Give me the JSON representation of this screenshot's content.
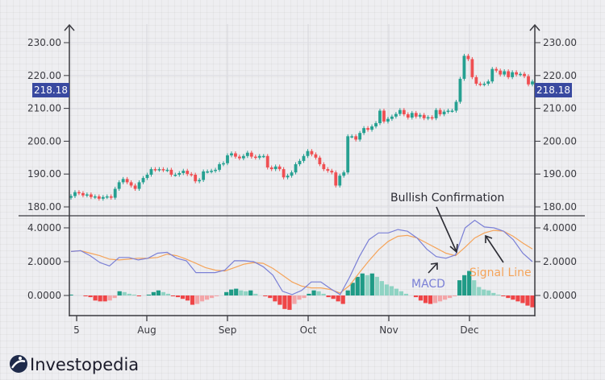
{
  "chart_data": [
    {
      "type": "candlestick",
      "panel": "price",
      "ylim": [
        178,
        236
      ],
      "yticks": [
        "230.00",
        "220.00",
        "210.00",
        "200.00",
        "190.00",
        "180.00"
      ],
      "ytick_values": [
        230,
        220,
        210,
        200,
        190,
        180
      ],
      "last_price_label": "218.18",
      "closes": [
        183.3,
        184.5,
        184.2,
        183.5,
        183.8,
        183,
        183.2,
        182.5,
        183,
        183.2,
        182.8,
        185.5,
        187.5,
        188.5,
        187.5,
        186.5,
        185.5,
        187.5,
        188.8,
        189.8,
        191.5,
        191.3,
        191.5,
        191.2,
        191.3,
        189.8,
        189.8,
        190.3,
        191,
        190,
        189.8,
        187.8,
        188.2,
        190.8,
        190.8,
        191,
        191.3,
        193,
        193.3,
        195.7,
        196.3,
        195.3,
        194.8,
        195.5,
        196.5,
        195.3,
        195,
        195.5,
        195.5,
        192,
        191.5,
        192.3,
        191.5,
        189,
        189.5,
        190.5,
        193,
        194,
        195.5,
        197,
        196,
        195,
        193,
        191.5,
        191,
        190.5,
        186.5,
        189.5,
        190.5,
        201.5,
        201.5,
        200.5,
        202.5,
        204,
        203.5,
        204.5,
        205.5,
        209.3,
        206,
        206.8,
        207.5,
        208.3,
        209.5,
        208.2,
        207.2,
        208.6,
        207.5,
        208,
        207,
        207.3,
        207,
        209.5,
        208.2,
        209,
        209.3,
        209.3,
        212,
        219,
        226,
        225,
        219.5,
        217.5,
        217.3,
        217.5,
        218.2,
        222,
        221.5,
        220.3,
        221.3,
        219.5,
        221,
        220.3,
        220.5,
        219.8,
        217.3,
        218.18
      ],
      "colors": {
        "up": "#26a091",
        "down": "#ef4f52",
        "price_label_bg": "#3949a0"
      }
    },
    {
      "type": "line+bar",
      "panel": "macd",
      "ylim": [
        -1.0,
        4.6
      ],
      "yticks": [
        "4.0000",
        "2.0000",
        "0.0000"
      ],
      "ytick_values": [
        4,
        2,
        0
      ],
      "xticks": [
        "5",
        "Aug",
        "Sep",
        "Oct",
        "Nov",
        "Dec"
      ],
      "series": [
        {
          "name": "MACD",
          "color": "#7b80d6",
          "values": [
            2.6,
            2.65,
            2.35,
            1.95,
            1.75,
            2.25,
            2.25,
            2.1,
            2.2,
            2.5,
            2.55,
            2.2,
            2.05,
            1.35,
            1.35,
            1.35,
            1.5,
            2.05,
            2.05,
            2.0,
            1.7,
            1.2,
            0.25,
            0.05,
            0.3,
            0.8,
            0.8,
            0.4,
            0.05,
            1.1,
            2.3,
            3.3,
            3.7,
            3.7,
            3.9,
            3.8,
            3.4,
            2.75,
            2.3,
            2.2,
            2.4,
            4.0,
            4.45,
            4.05,
            4.0,
            3.8,
            3.3,
            2.5,
            2.0
          ]
        },
        {
          "name": "Signal Line",
          "color": "#f5a45a",
          "values": [
            2.6,
            2.65,
            2.5,
            2.35,
            2.15,
            2.1,
            2.15,
            2.2,
            2.2,
            2.25,
            2.45,
            2.35,
            2.15,
            1.9,
            1.65,
            1.5,
            1.45,
            1.65,
            1.85,
            1.95,
            1.9,
            1.6,
            1.2,
            0.8,
            0.55,
            0.45,
            0.45,
            0.35,
            0.15,
            0.6,
            1.35,
            2.05,
            2.7,
            3.2,
            3.5,
            3.55,
            3.4,
            3.1,
            2.8,
            2.5,
            2.35,
            2.85,
            3.4,
            3.7,
            3.85,
            3.8,
            3.5,
            3.1,
            2.75
          ]
        }
      ],
      "histogram": [
        0.05,
        0,
        0,
        -0.05,
        -0.1,
        -0.3,
        -0.35,
        -0.35,
        -0.3,
        -0.15,
        0.25,
        0.2,
        0.1,
        0.05,
        -0.05,
        0,
        0.05,
        0.2,
        0.3,
        0.2,
        0.1,
        -0.05,
        -0.1,
        -0.2,
        -0.3,
        -0.55,
        -0.5,
        -0.35,
        -0.25,
        -0.15,
        -0.05,
        0,
        0.2,
        0.35,
        0.4,
        0.3,
        0.25,
        0.3,
        0.1,
        0,
        -0.05,
        -0.15,
        -0.35,
        -0.55,
        -0.8,
        -0.85,
        -0.5,
        -0.25,
        -0.15,
        0.1,
        0.3,
        0.25,
        0.1,
        -0.1,
        -0.2,
        -0.35,
        -0.5,
        0.3,
        0.75,
        1.1,
        1.3,
        1.2,
        1.3,
        1.1,
        0.85,
        0.65,
        0.55,
        0.4,
        0.25,
        0.1,
        0,
        -0.1,
        -0.3,
        -0.45,
        -0.5,
        -0.45,
        -0.35,
        -0.25,
        -0.15,
        -0.05,
        0.9,
        1.2,
        1.45,
        0.9,
        0.5,
        0.35,
        0.3,
        0.15,
        0.05,
        -0.05,
        -0.15,
        -0.25,
        -0.35,
        -0.45,
        -0.6,
        -0.7
      ],
      "histogram_colors": {
        "up_strong": "#1f9b86",
        "up_weak": "#8fd3c3",
        "down_strong": "#ef4547",
        "down_weak": "#f3a5a8"
      }
    }
  ],
  "annotations": {
    "bullish": "Bullish Confirmation",
    "macd": "MACD",
    "signal": "Signal Line"
  },
  "brand": {
    "name": "Investopedia"
  }
}
